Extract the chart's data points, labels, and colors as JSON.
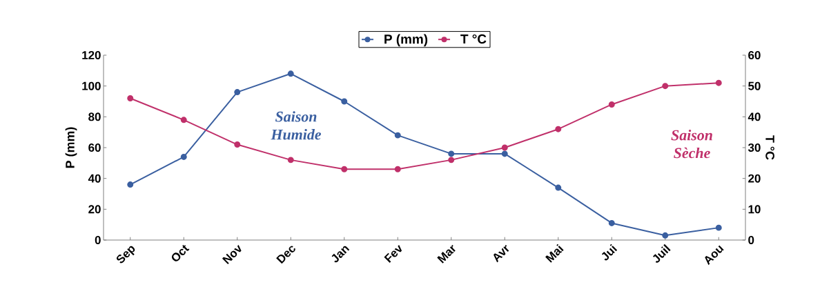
{
  "chart_data": {
    "type": "line",
    "categories": [
      "Sep",
      "Oct",
      "Nov",
      "Dec",
      "Jan",
      "Fev",
      "Mar",
      "Avr",
      "Mai",
      "Jui",
      "Juil",
      "Aou"
    ],
    "series": [
      {
        "name": "P (mm)",
        "color": "#3a5fa0",
        "values": [
          36,
          54,
          96,
          108,
          90,
          68,
          56,
          56,
          34,
          11,
          3,
          8
        ]
      },
      {
        "name": "T °C",
        "color": "#c0306a",
        "axis": "y2",
        "values": [
          46,
          39,
          31,
          26,
          23,
          23,
          26,
          30,
          36,
          44,
          50,
          51
        ]
      }
    ],
    "ylabel": "P (mm)",
    "y2label": "T °C",
    "ylim": [
      0,
      120
    ],
    "yticks": [
      0,
      20,
      40,
      60,
      80,
      100,
      120
    ],
    "y2lim": [
      0,
      60
    ],
    "y2ticks": [
      0,
      10,
      20,
      30,
      40,
      50,
      60
    ],
    "annotations": [
      "Saison Humide",
      "Saison Sèche"
    ],
    "legend": "top",
    "marker": "circle",
    "line_style": "solid",
    "grid": false
  }
}
